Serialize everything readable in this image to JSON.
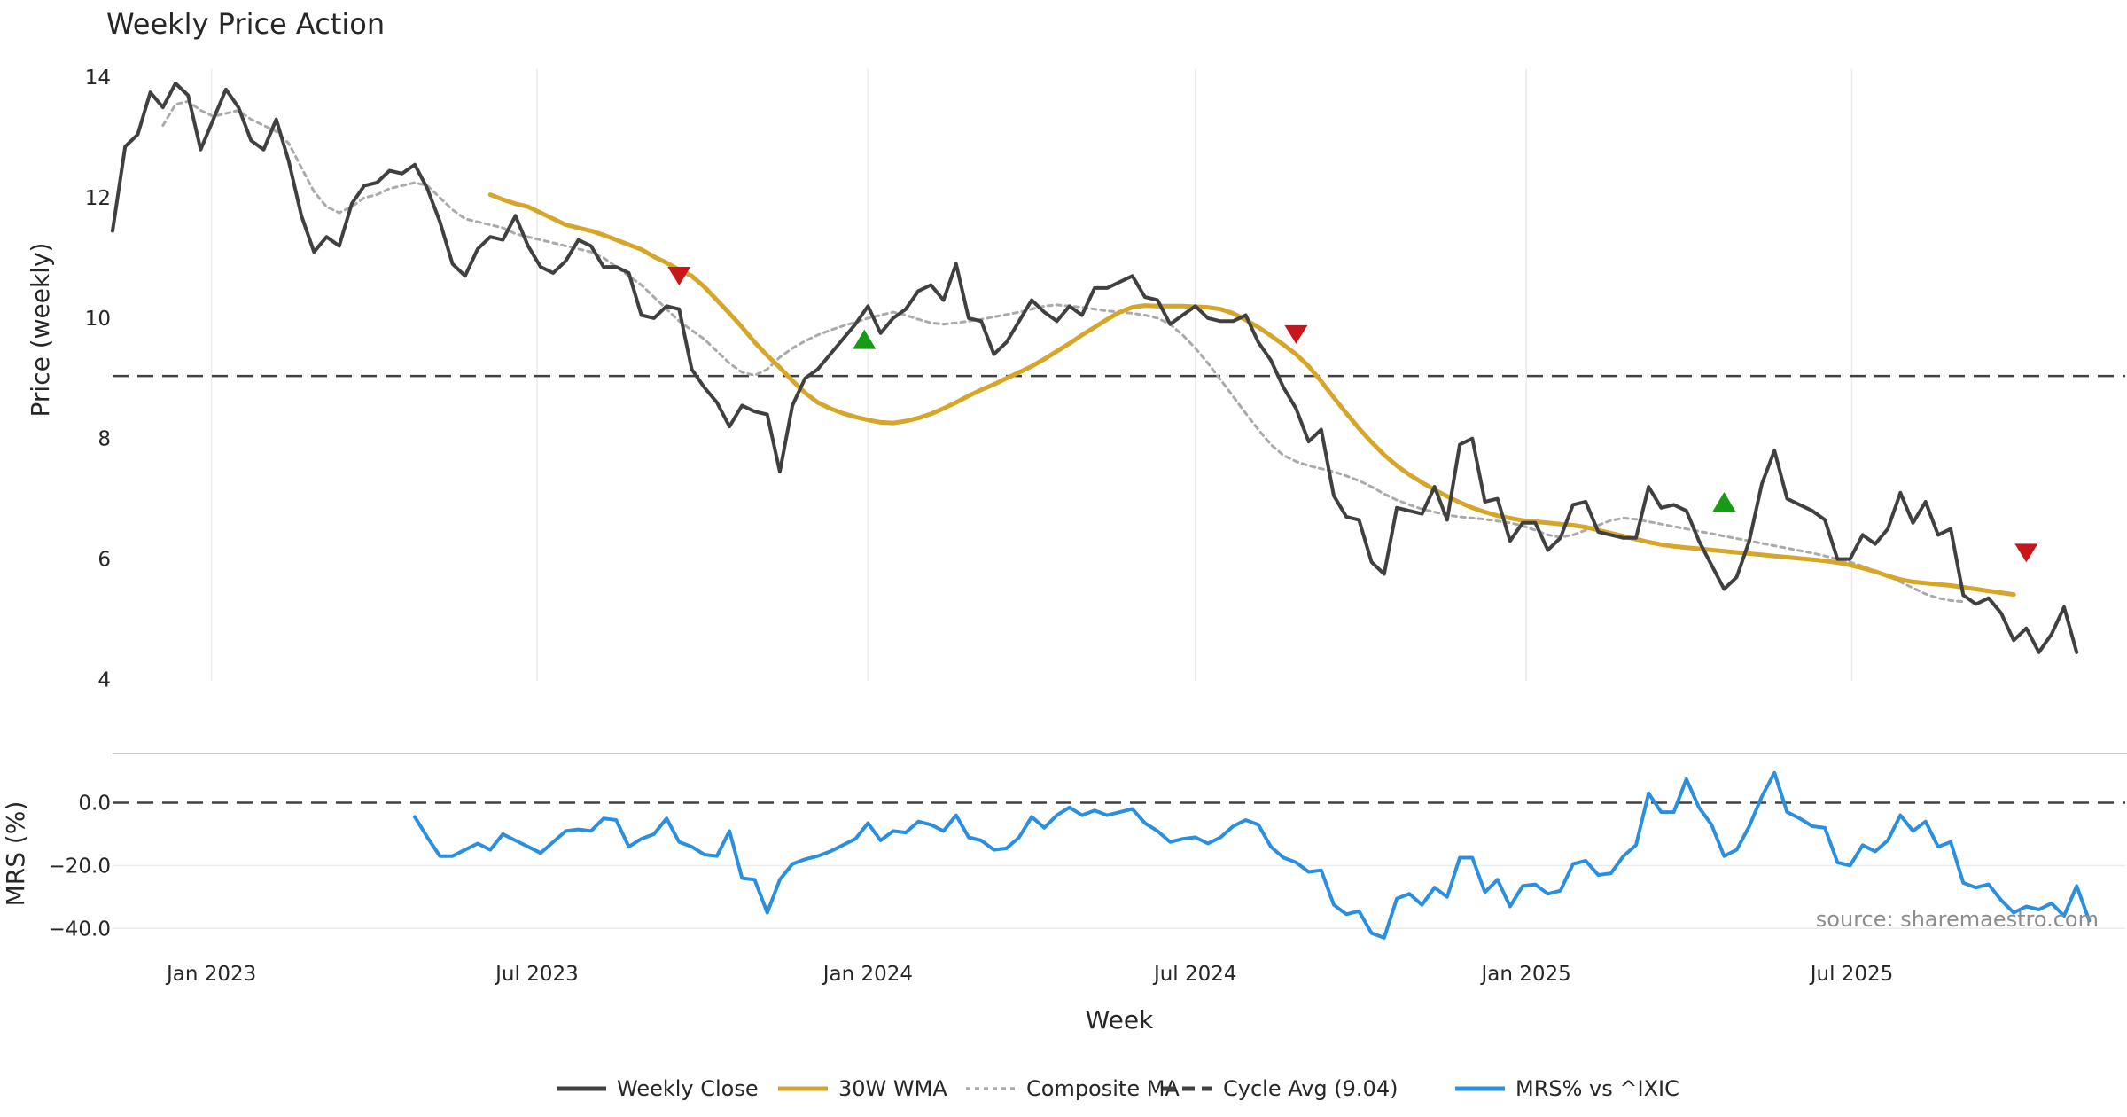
{
  "chart_data": [
    {
      "panel": "price",
      "type": "line",
      "title": "Weekly Price Action",
      "ylabel": "Price (weekly)",
      "ylim": [
        3.8,
        14.4
      ],
      "yticks": [
        4,
        6,
        8,
        10,
        12,
        14
      ],
      "xlim": [
        "2022-11-07",
        "2025-11-30"
      ],
      "hline": {
        "name": "Cycle Avg (9.04)",
        "value": 9.04
      },
      "series": [
        {
          "name": "Weekly Close",
          "color": "#404040",
          "style": "solid",
          "x_start": "2022-11-07",
          "interval_days": 7,
          "values": [
            11.45,
            12.85,
            13.05,
            13.75,
            13.5,
            13.9,
            13.7,
            12.8,
            13.3,
            13.8,
            13.5,
            12.95,
            12.8,
            13.3,
            12.6,
            11.7,
            11.1,
            11.35,
            11.2,
            11.9,
            12.2,
            12.25,
            12.45,
            12.4,
            12.55,
            12.15,
            11.6,
            10.9,
            10.7,
            11.15,
            11.35,
            11.3,
            11.7,
            11.2,
            10.85,
            10.75,
            10.95,
            11.3,
            11.2,
            10.85,
            10.85,
            10.75,
            10.05,
            10.0,
            10.2,
            10.15,
            9.15,
            8.85,
            8.6,
            8.2,
            8.55,
            8.45,
            8.4,
            7.45,
            8.55,
            9.0,
            9.15,
            9.4,
            9.65,
            9.9,
            10.2,
            9.75,
            10.0,
            10.15,
            10.45,
            10.55,
            10.3,
            10.9,
            10.0,
            9.95,
            9.4,
            9.6,
            9.95,
            10.3,
            10.1,
            9.95,
            10.2,
            10.05,
            10.5,
            10.5,
            10.6,
            10.7,
            10.35,
            10.3,
            9.9,
            10.05,
            10.2,
            10.0,
            9.95,
            9.95,
            10.05,
            9.6,
            9.3,
            8.85,
            8.5,
            7.95,
            8.15,
            7.05,
            6.7,
            6.65,
            5.95,
            5.75,
            6.85,
            6.8,
            6.75,
            7.2,
            6.65,
            7.9,
            8.0,
            6.95,
            7.0,
            6.3,
            6.6,
            6.6,
            6.15,
            6.35,
            6.9,
            6.95,
            6.45,
            6.4,
            6.35,
            6.35,
            7.2,
            6.85,
            6.9,
            6.8,
            6.3,
            5.9,
            5.5,
            5.7,
            6.3,
            7.25,
            7.8,
            7.0,
            6.9,
            6.8,
            6.65,
            6.0,
            6.0,
            6.4,
            6.25,
            6.5,
            7.1,
            6.6,
            6.95,
            6.4,
            6.5,
            5.4,
            5.25,
            5.35,
            5.1,
            4.65,
            4.85,
            4.45,
            4.75,
            5.2,
            4.45
          ]
        },
        {
          "name": "30W WMA",
          "color": "#d6a62b",
          "style": "solid",
          "x_start": "2023-06-05",
          "interval_days": 7,
          "values": [
            12.05,
            11.97,
            11.9,
            11.85,
            11.75,
            11.65,
            11.55,
            11.5,
            11.45,
            11.38,
            11.3,
            11.22,
            11.14,
            11.02,
            10.92,
            10.8,
            10.7,
            10.52,
            10.3,
            10.08,
            9.85,
            9.6,
            9.38,
            9.18,
            8.96,
            8.76,
            8.6,
            8.5,
            8.42,
            8.36,
            8.31,
            8.27,
            8.26,
            8.29,
            8.34,
            8.41,
            8.5,
            8.6,
            8.71,
            8.81,
            8.9,
            9.0,
            9.1,
            9.2,
            9.32,
            9.45,
            9.58,
            9.72,
            9.85,
            9.98,
            10.1,
            10.18,
            10.21,
            10.2,
            10.2,
            10.2,
            10.19,
            10.18,
            10.15,
            10.08,
            9.97,
            9.85,
            9.71,
            9.56,
            9.4,
            9.2,
            8.95,
            8.68,
            8.42,
            8.17,
            7.94,
            7.73,
            7.55,
            7.4,
            7.27,
            7.15,
            7.04,
            6.94,
            6.85,
            6.78,
            6.72,
            6.68,
            6.64,
            6.62,
            6.6,
            6.58,
            6.56,
            6.53,
            6.48,
            6.43,
            6.38,
            6.33,
            6.28,
            6.24,
            6.21,
            6.19,
            6.17,
            6.15,
            6.13,
            6.11,
            6.09,
            6.07,
            6.05,
            6.03,
            6.01,
            5.99,
            5.97,
            5.94,
            5.9,
            5.85,
            5.79,
            5.72,
            5.66,
            5.62,
            5.6,
            5.58,
            5.56,
            5.53,
            5.5,
            5.47,
            5.44,
            5.41
          ]
        },
        {
          "name": "Composite MA",
          "color": "#aaaaaa",
          "style": "dotted",
          "x_start": "2022-12-05",
          "interval_days": 7,
          "values": [
            13.2,
            13.55,
            13.6,
            13.45,
            13.35,
            13.4,
            13.45,
            13.3,
            13.2,
            13.1,
            12.9,
            12.5,
            12.1,
            11.85,
            11.75,
            11.85,
            12.0,
            12.05,
            12.15,
            12.2,
            12.25,
            12.2,
            12.0,
            11.8,
            11.65,
            11.6,
            11.55,
            11.5,
            11.4,
            11.35,
            11.3,
            11.25,
            11.2,
            11.15,
            11.1,
            11.0,
            10.85,
            10.7,
            10.55,
            10.35,
            10.15,
            9.95,
            9.8,
            9.65,
            9.45,
            9.25,
            9.1,
            9.05,
            9.15,
            9.35,
            9.5,
            9.62,
            9.72,
            9.8,
            9.87,
            9.93,
            10.0,
            10.05,
            10.1,
            10.05,
            9.98,
            9.92,
            9.9,
            9.92,
            9.95,
            9.98,
            10.02,
            10.06,
            10.1,
            10.15,
            10.2,
            10.22,
            10.2,
            10.18,
            10.15,
            10.12,
            10.1,
            10.08,
            10.05,
            10.0,
            9.9,
            9.72,
            9.5,
            9.25,
            8.98,
            8.7,
            8.42,
            8.15,
            7.9,
            7.72,
            7.62,
            7.55,
            7.5,
            7.45,
            7.38,
            7.3,
            7.2,
            7.08,
            6.98,
            6.9,
            6.83,
            6.78,
            6.73,
            6.7,
            6.68,
            6.66,
            6.63,
            6.6,
            6.55,
            6.48,
            6.4,
            6.36,
            6.4,
            6.48,
            6.56,
            6.64,
            6.68,
            6.66,
            6.62,
            6.58,
            6.54,
            6.5,
            6.46,
            6.42,
            6.38,
            6.34,
            6.3,
            6.26,
            6.22,
            6.18,
            6.14,
            6.1,
            6.05,
            6.0,
            5.95,
            5.88,
            5.8,
            5.72,
            5.62,
            5.52,
            5.42,
            5.35,
            5.31,
            5.29
          ]
        }
      ],
      "markers": [
        {
          "type": "sell",
          "date": "2023-09-18",
          "value": 10.72,
          "color": "#c9161b"
        },
        {
          "type": "buy",
          "date": "2023-12-30",
          "value": 9.65,
          "color": "#169b16"
        },
        {
          "type": "sell",
          "date": "2024-08-26",
          "value": 9.75,
          "color": "#c9161b"
        },
        {
          "type": "buy",
          "date": "2025-04-21",
          "value": 6.95,
          "color": "#169b16"
        },
        {
          "type": "sell",
          "date": "2025-10-06",
          "value": 6.12,
          "color": "#c9161b"
        }
      ]
    },
    {
      "panel": "mrs",
      "type": "line",
      "ylabel": "MRS (%)",
      "ylim": [
        -45,
        10
      ],
      "yticks": [
        0.0,
        -20.0,
        -40.0
      ],
      "ytick_labels": [
        "0.0",
        "−20.0",
        "−40.0"
      ],
      "hline": {
        "value": 0
      },
      "series": [
        {
          "name": "MRS% vs ^IXIC",
          "color": "#2b8fe0",
          "style": "solid",
          "x_start": "2023-04-24",
          "interval_days": 7,
          "values": [
            -4.5,
            -11,
            -17,
            -17,
            -15,
            -13,
            -15,
            -10,
            -12,
            -14,
            -16,
            -12.5,
            -9,
            -8.5,
            -9,
            -5,
            -5.5,
            -14,
            -11.5,
            -10,
            -5,
            -12.5,
            -14,
            -16.5,
            -17,
            -9,
            -24,
            -24.5,
            -35,
            -24.5,
            -19.5,
            -18,
            -17,
            -15.5,
            -13.5,
            -11.5,
            -6.5,
            -12,
            -9,
            -9.5,
            -6,
            -7,
            -9,
            -4,
            -11,
            -12,
            -15,
            -14.5,
            -11,
            -4.5,
            -8,
            -4,
            -1.5,
            -4,
            -2.5,
            -4,
            -3,
            -2,
            -6.5,
            -9,
            -12.5,
            -11.5,
            -11,
            -13,
            -11,
            -7.5,
            -5.5,
            -7,
            -14,
            -17.5,
            -19,
            -22,
            -21.5,
            -32.5,
            -35.5,
            -34.5,
            -41.5,
            -43,
            -30.5,
            -29,
            -32.5,
            -27,
            -30,
            -17.5,
            -17.5,
            -28.5,
            -24.5,
            -33,
            -26.5,
            -26,
            -29,
            -28,
            -19.5,
            -18.5,
            -23,
            -22.5,
            -17,
            -13.5,
            3,
            -3,
            -3,
            7.5,
            -1.5,
            -7,
            -17,
            -15,
            -7.5,
            2,
            9.5,
            -3,
            -5,
            -7.5,
            -8,
            -19,
            -20,
            -13.5,
            -15.5,
            -12,
            -4,
            -9,
            -6,
            -14,
            -12.5,
            -25.5,
            -27,
            -26,
            -31,
            -35,
            -33,
            -34,
            -32,
            -36,
            -26.5,
            -37.5
          ]
        }
      ]
    }
  ],
  "x_axis": {
    "label": "Week",
    "ticks": [
      {
        "label": "Jan 2023",
        "date": "2023-01-01"
      },
      {
        "label": "Jul 2023",
        "date": "2023-07-01"
      },
      {
        "label": "Jan 2024",
        "date": "2024-01-01"
      },
      {
        "label": "Jul 2024",
        "date": "2024-07-01"
      },
      {
        "label": "Jan 2025",
        "date": "2025-01-01"
      },
      {
        "label": "Jul 2025",
        "date": "2025-07-01"
      }
    ]
  },
  "legend": [
    {
      "label": "Weekly Close",
      "color": "#404040",
      "style": "solid"
    },
    {
      "label": "30W WMA",
      "color": "#d6a62b",
      "style": "solid"
    },
    {
      "label": "Composite MA",
      "color": "#aaaaaa",
      "style": "dotted"
    },
    {
      "label": "Cycle Avg (9.04)",
      "color": "#404040",
      "style": "dashed"
    },
    {
      "label": "MRS% vs ^IXIC",
      "color": "#2b8fe0",
      "style": "solid"
    }
  ],
  "watermark": "source: sharemaestro.com"
}
